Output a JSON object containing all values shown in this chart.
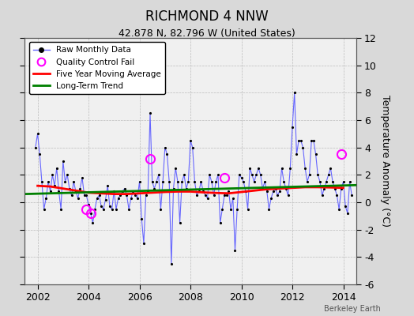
{
  "title": "RICHMOND 4 NNW",
  "subtitle": "42.878 N, 82.796 W (United States)",
  "ylabel": "Temperature Anomaly (°C)",
  "watermark": "Berkeley Earth",
  "background_color": "#d9d9d9",
  "plot_bg_color": "#f0f0f0",
  "ylim": [
    -6,
    12
  ],
  "xlim": [
    2001.5,
    2014.5
  ],
  "yticks": [
    -6,
    -4,
    -2,
    0,
    2,
    4,
    6,
    8,
    10,
    12
  ],
  "xticks": [
    2002,
    2004,
    2006,
    2008,
    2010,
    2012,
    2014
  ],
  "raw_color": "#6666ff",
  "moving_avg_color": "red",
  "trend_color": "green",
  "qc_fail_color": "magenta",
  "raw_monthly_x": [
    2001.917,
    2002.0,
    2002.083,
    2002.167,
    2002.25,
    2002.333,
    2002.417,
    2002.5,
    2002.583,
    2002.667,
    2002.75,
    2002.833,
    2002.917,
    2003.0,
    2003.083,
    2003.167,
    2003.25,
    2003.333,
    2003.417,
    2003.5,
    2003.583,
    2003.667,
    2003.75,
    2003.833,
    2003.917,
    2004.0,
    2004.083,
    2004.167,
    2004.25,
    2004.333,
    2004.417,
    2004.5,
    2004.583,
    2004.667,
    2004.75,
    2004.833,
    2004.917,
    2005.0,
    2005.083,
    2005.167,
    2005.25,
    2005.333,
    2005.417,
    2005.5,
    2005.583,
    2005.667,
    2005.75,
    2005.833,
    2005.917,
    2006.0,
    2006.083,
    2006.167,
    2006.25,
    2006.333,
    2006.417,
    2006.5,
    2006.583,
    2006.667,
    2006.75,
    2006.833,
    2006.917,
    2007.0,
    2007.083,
    2007.167,
    2007.25,
    2007.333,
    2007.417,
    2007.5,
    2007.583,
    2007.667,
    2007.75,
    2007.833,
    2007.917,
    2008.0,
    2008.083,
    2008.167,
    2008.25,
    2008.333,
    2008.417,
    2008.5,
    2008.583,
    2008.667,
    2008.75,
    2008.833,
    2008.917,
    2009.0,
    2009.083,
    2009.167,
    2009.25,
    2009.333,
    2009.417,
    2009.5,
    2009.583,
    2009.667,
    2009.75,
    2009.833,
    2009.917,
    2010.0,
    2010.083,
    2010.167,
    2010.25,
    2010.333,
    2010.417,
    2010.5,
    2010.583,
    2010.667,
    2010.75,
    2010.833,
    2010.917,
    2011.0,
    2011.083,
    2011.167,
    2011.25,
    2011.333,
    2011.417,
    2011.5,
    2011.583,
    2011.667,
    2011.75,
    2011.833,
    2011.917,
    2012.0,
    2012.083,
    2012.167,
    2012.25,
    2012.333,
    2012.417,
    2012.5,
    2012.583,
    2012.667,
    2012.75,
    2012.833,
    2012.917,
    2013.0,
    2013.083,
    2013.167,
    2013.25,
    2013.333,
    2013.417,
    2013.5,
    2013.583,
    2013.667,
    2013.75,
    2013.833,
    2013.917,
    2014.0,
    2014.083,
    2014.167,
    2014.25,
    2014.333
  ],
  "raw_monthly_y": [
    4.0,
    5.0,
    3.5,
    1.5,
    -0.5,
    0.3,
    1.5,
    0.8,
    2.0,
    1.2,
    2.5,
    0.8,
    -0.5,
    3.0,
    1.5,
    2.0,
    1.0,
    0.5,
    1.5,
    0.8,
    0.3,
    1.0,
    1.8,
    0.5,
    0.5,
    -0.2,
    -0.8,
    -1.5,
    -0.5,
    0.3,
    0.5,
    -0.3,
    -0.5,
    0.2,
    1.2,
    -0.3,
    -0.5,
    0.8,
    -0.5,
    0.3,
    0.5,
    0.8,
    1.0,
    0.5,
    -0.5,
    0.3,
    0.8,
    0.5,
    0.3,
    1.5,
    -1.2,
    -3.0,
    0.5,
    0.8,
    6.5,
    1.5,
    1.0,
    1.5,
    2.0,
    -0.5,
    1.5,
    4.0,
    3.5,
    1.5,
    -4.5,
    1.0,
    2.5,
    1.5,
    -1.5,
    1.5,
    2.0,
    1.0,
    1.5,
    4.5,
    4.0,
    1.5,
    0.5,
    0.8,
    1.5,
    0.8,
    0.5,
    0.3,
    2.0,
    1.5,
    0.5,
    1.5,
    2.0,
    -1.5,
    -0.5,
    0.5,
    0.5,
    0.8,
    -0.5,
    0.3,
    -3.5,
    -0.5,
    2.0,
    1.8,
    1.5,
    0.8,
    -0.5,
    2.5,
    2.0,
    1.5,
    2.0,
    2.5,
    2.0,
    1.0,
    1.5,
    0.8,
    -0.5,
    0.3,
    0.8,
    1.0,
    0.5,
    0.8,
    2.5,
    1.5,
    1.0,
    0.5,
    2.5,
    5.5,
    8.0,
    3.5,
    4.5,
    4.5,
    4.0,
    2.5,
    1.5,
    2.0,
    4.5,
    4.5,
    3.5,
    2.0,
    1.5,
    0.5,
    1.0,
    1.5,
    2.0,
    2.5,
    1.5,
    1.0,
    0.5,
    -0.5,
    1.0,
    1.5,
    -0.3,
    -0.8,
    1.5,
    0.5
  ],
  "qc_fail_x": [
    2003.917,
    2004.083,
    2006.417,
    2009.333,
    2013.917
  ],
  "qc_fail_y": [
    -0.5,
    -0.8,
    3.2,
    1.8,
    3.5
  ],
  "moving_avg_x": [
    2002.0,
    2002.5,
    2003.0,
    2003.5,
    2004.0,
    2004.5,
    2005.0,
    2005.5,
    2006.0,
    2006.5,
    2007.0,
    2007.5,
    2008.0,
    2008.5,
    2009.0,
    2009.5,
    2010.0,
    2010.5,
    2011.0,
    2011.5,
    2012.0,
    2012.5,
    2013.0,
    2013.5,
    2014.0
  ],
  "moving_avg_y": [
    1.2,
    1.15,
    1.0,
    0.85,
    0.7,
    0.65,
    0.6,
    0.6,
    0.65,
    0.7,
    0.75,
    0.78,
    0.78,
    0.72,
    0.68,
    0.65,
    0.75,
    0.85,
    0.95,
    1.0,
    1.05,
    1.1,
    1.1,
    1.08,
    1.05
  ],
  "trend_x": [
    2001.5,
    2014.5
  ],
  "trend_y": [
    0.6,
    1.25
  ]
}
